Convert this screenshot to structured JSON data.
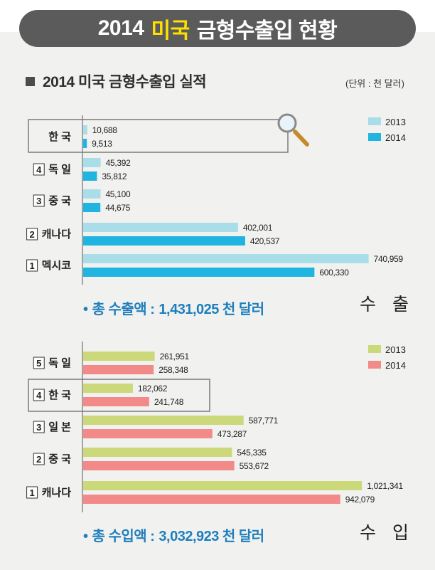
{
  "header": {
    "title_pre": "2014",
    "title_highlight": "미국",
    "title_post": "금형수출입 현황",
    "section_heading": "2014 미국 금형수출입 실적",
    "unit": "(단위 : 천 달러)"
  },
  "chart_data": [
    {
      "type": "bar",
      "orientation": "horizontal",
      "corner_label": "수 출",
      "total_bullet": "•",
      "total_label": "총 수출액 :",
      "total_value": "1,431,025 천 달러",
      "categories": [
        {
          "rank": "",
          "name": "한 국",
          "highlighted": true
        },
        {
          "rank": "4",
          "name": "독 일",
          "highlighted": false
        },
        {
          "rank": "3",
          "name": "중 국",
          "highlighted": false
        },
        {
          "rank": "2",
          "name": "캐나다",
          "highlighted": false
        },
        {
          "rank": "1",
          "name": "멕시코",
          "highlighted": false
        }
      ],
      "series": [
        {
          "name": "2013",
          "color": "#a9dde8",
          "values": [
            10688,
            45392,
            45100,
            402001,
            740959
          ],
          "labels": [
            "10,688",
            "45,392",
            "45,100",
            "402,001",
            "740,959"
          ]
        },
        {
          "name": "2014",
          "color": "#1fb5e0",
          "values": [
            9513,
            35812,
            44675,
            420537,
            600330
          ],
          "labels": [
            "9,513",
            "35,812",
            "44,675",
            "420,537",
            "600,330"
          ]
        }
      ],
      "legend_position": "top-right",
      "grid": false,
      "icon": "magnifier-icon"
    },
    {
      "type": "bar",
      "orientation": "horizontal",
      "corner_label": "수 입",
      "total_bullet": "•",
      "total_label": "총 수입액 :",
      "total_value": "3,032,923 천 달러",
      "categories": [
        {
          "rank": "5",
          "name": "독 일",
          "highlighted": false
        },
        {
          "rank": "4",
          "name": "한 국",
          "highlighted": true
        },
        {
          "rank": "3",
          "name": "일 본",
          "highlighted": false
        },
        {
          "rank": "2",
          "name": "중 국",
          "highlighted": false
        },
        {
          "rank": "1",
          "name": "캐나다",
          "highlighted": false
        }
      ],
      "series": [
        {
          "name": "2013",
          "color": "#cbd97a",
          "values": [
            261951,
            182062,
            587771,
            545335,
            1021341
          ],
          "labels": [
            "261,951",
            "182,062",
            "587,771",
            "545,335",
            "1,021,341"
          ]
        },
        {
          "name": "2014",
          "color": "#f28a8a",
          "values": [
            258348,
            241748,
            473287,
            553672,
            942079
          ],
          "labels": [
            "258,348",
            "241,748",
            "473,287",
            "553,672",
            "942,079"
          ]
        }
      ],
      "legend_position": "top-right",
      "grid": false
    }
  ]
}
